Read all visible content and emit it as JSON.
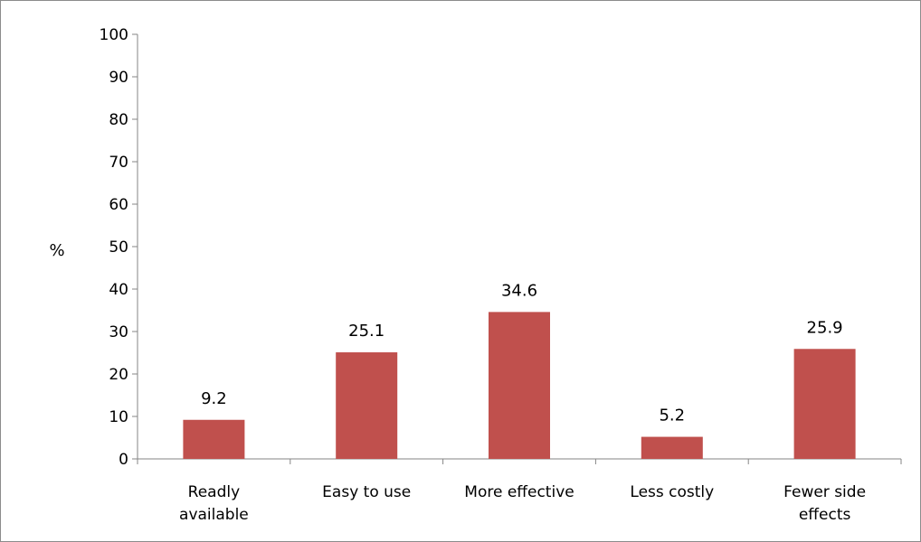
{
  "chart_data": {
    "type": "bar",
    "categories": [
      [
        "Readly",
        "available"
      ],
      [
        "Easy to use"
      ],
      [
        "More effective"
      ],
      [
        "Less costly"
      ],
      [
        "Fewer side",
        "effects"
      ]
    ],
    "values": [
      9.2,
      25.1,
      34.6,
      5.2,
      25.9
    ],
    "value_labels": [
      "9.2",
      "25.1",
      "34.6",
      "5.2",
      "25.9"
    ],
    "ylabel": "%",
    "ylim": [
      0,
      100
    ],
    "yticks": [
      0,
      10,
      20,
      30,
      40,
      50,
      60,
      70,
      80,
      90,
      100
    ],
    "grid": false,
    "legend": "none",
    "bar_color": "#C0504D"
  }
}
